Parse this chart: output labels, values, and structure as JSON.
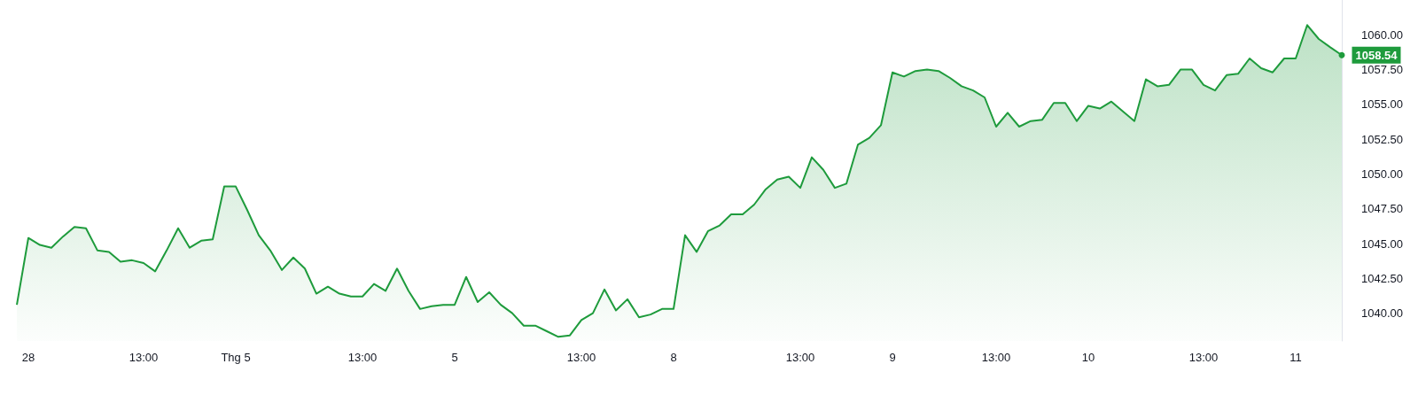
{
  "chart_data": {
    "type": "area",
    "categories": [
      null,
      "28",
      null,
      null,
      null,
      null,
      null,
      null,
      null,
      null,
      null,
      "13:00",
      null,
      null,
      null,
      null,
      null,
      null,
      null,
      "Thg 5",
      null,
      null,
      null,
      null,
      null,
      null,
      null,
      null,
      null,
      null,
      "13:00",
      null,
      null,
      null,
      null,
      null,
      null,
      null,
      "5",
      null,
      null,
      null,
      null,
      null,
      null,
      null,
      null,
      null,
      null,
      "13:00",
      null,
      null,
      null,
      null,
      null,
      null,
      null,
      "8",
      null,
      null,
      null,
      null,
      null,
      null,
      null,
      null,
      null,
      null,
      "13:00",
      null,
      null,
      null,
      null,
      null,
      null,
      null,
      "9",
      null,
      null,
      null,
      null,
      null,
      null,
      null,
      null,
      "13:00",
      null,
      null,
      null,
      null,
      null,
      null,
      null,
      "10",
      null,
      null,
      null,
      null,
      null,
      null,
      null,
      null,
      null,
      "13:00",
      null,
      null,
      null,
      null,
      null,
      null,
      null,
      "11",
      null,
      null,
      null,
      null
    ],
    "series": [
      {
        "color": "#1e9b3c",
        "values": [
          1040.6,
          1045.4,
          1044.9,
          1044.7,
          1045.5,
          1046.2,
          1046.1,
          1044.5,
          1044.4,
          1043.7,
          1043.8,
          1043.6,
          1043.0,
          1044.5,
          1046.1,
          1044.7,
          1045.2,
          1045.3,
          1049.1,
          1049.1,
          1047.4,
          1045.6,
          1044.5,
          1043.1,
          1044.0,
          1043.2,
          1041.4,
          1041.9,
          1041.4,
          1041.2,
          1041.2,
          1042.1,
          1041.6,
          1043.2,
          1041.6,
          1040.3,
          1040.5,
          1040.6,
          1040.6,
          1042.6,
          1040.8,
          1041.5,
          1040.6,
          1040.0,
          1039.1,
          1039.1,
          1038.7,
          1038.3,
          1038.4,
          1039.5,
          1040.0,
          1041.7,
          1040.2,
          1041.0,
          1039.7,
          1039.9,
          1040.3,
          1040.3,
          1045.6,
          1044.4,
          1045.9,
          1046.3,
          1047.1,
          1047.1,
          1047.8,
          1048.9,
          1049.6,
          1049.8,
          1049.0,
          1051.2,
          1050.3,
          1049.0,
          1049.3,
          1052.1,
          1052.6,
          1053.5,
          1057.3,
          1057.0,
          1057.4,
          1057.5,
          1057.4,
          1056.9,
          1056.3,
          1056.0,
          1055.5,
          1053.4,
          1054.4,
          1053.4,
          1053.8,
          1053.9,
          1055.1,
          1055.1,
          1053.8,
          1054.9,
          1054.7,
          1055.2,
          1054.5,
          1053.8,
          1056.8,
          1056.3,
          1056.4,
          1057.5,
          1057.5,
          1056.4,
          1056.0,
          1057.1,
          1057.2,
          1058.3,
          1057.6,
          1057.3,
          1058.3,
          1058.3,
          1060.7,
          1059.7,
          1059.1,
          1058.54
        ],
        "value_labels": [
          null,
          null,
          null,
          null,
          null,
          null,
          null,
          null,
          null,
          null,
          null,
          null,
          null,
          null,
          null,
          null,
          null,
          null,
          null,
          null,
          null,
          null,
          null,
          null,
          null,
          null,
          null,
          null,
          null,
          null,
          null,
          null,
          null,
          null,
          null,
          null,
          null,
          null,
          null,
          null,
          null,
          null,
          null,
          null,
          null,
          null,
          null,
          null,
          null,
          null,
          null,
          null,
          null,
          null,
          null,
          null,
          null,
          null,
          null,
          null,
          null,
          null,
          null,
          null,
          null,
          null,
          null,
          null,
          null,
          null,
          null,
          null,
          null,
          null,
          null,
          null,
          null,
          null,
          null,
          null,
          null,
          null,
          null,
          null,
          null,
          null,
          null,
          null,
          null,
          null,
          null,
          null,
          null,
          null,
          null,
          null,
          null,
          null,
          null,
          null,
          null,
          null,
          null,
          null,
          null,
          null,
          null,
          null,
          null,
          null,
          null,
          null,
          null,
          null,
          null,
          "1058.54"
        ]
      }
    ],
    "ylim": [
      1038,
      1062.5
    ],
    "yticks": [
      {
        "value": 1040,
        "label": "1040.00"
      },
      {
        "value": 1042.5,
        "label": "1042.50"
      },
      {
        "value": 1045,
        "label": "1045.00"
      },
      {
        "value": 1047.5,
        "label": "1047.50"
      },
      {
        "value": 1050,
        "label": "1050.00"
      },
      {
        "value": 1052.5,
        "label": "1052.50"
      },
      {
        "value": 1055,
        "label": "1055.00"
      },
      {
        "value": 1057.5,
        "label": "1057.50"
      },
      {
        "value": 1060,
        "label": "1060.00"
      }
    ],
    "grid": false
  }
}
